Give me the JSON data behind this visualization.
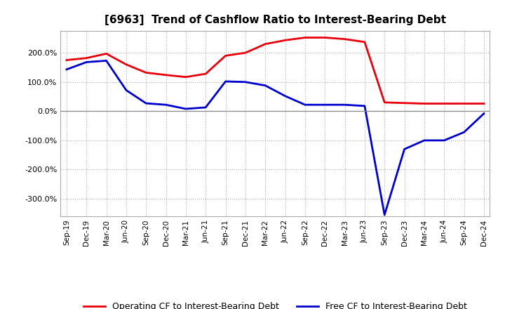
{
  "title": "[6963]  Trend of Cashflow Ratio to Interest-Bearing Debt",
  "x_labels": [
    "Sep-19",
    "Dec-19",
    "Mar-20",
    "Jun-20",
    "Sep-20",
    "Dec-20",
    "Mar-21",
    "Jun-21",
    "Sep-21",
    "Dec-21",
    "Mar-22",
    "Jun-22",
    "Sep-22",
    "Dec-22",
    "Mar-23",
    "Jun-23",
    "Sep-23",
    "Dec-23",
    "Mar-24",
    "Jun-24",
    "Sep-24",
    "Dec-24"
  ],
  "operating_cf": [
    175,
    182,
    197,
    160,
    132,
    124,
    117,
    128,
    190,
    200,
    230,
    243,
    252,
    252,
    247,
    237,
    30,
    28,
    26,
    26,
    26,
    26
  ],
  "free_cf": [
    143,
    168,
    173,
    72,
    27,
    22,
    8,
    13,
    102,
    100,
    88,
    52,
    22,
    22,
    22,
    18,
    -355,
    -130,
    -100,
    -100,
    -72,
    -8
  ],
  "operating_color": "#e8000d",
  "free_color": "#0000cd",
  "background_color": "#ffffff",
  "grid_color": "#aaaaaa",
  "ylim": [
    -360,
    275
  ],
  "yticks": [
    -300.0,
    -200.0,
    -100.0,
    0.0,
    100.0,
    200.0
  ],
  "legend_labels": [
    "Operating CF to Interest-Bearing Debt",
    "Free CF to Interest-Bearing Debt"
  ]
}
